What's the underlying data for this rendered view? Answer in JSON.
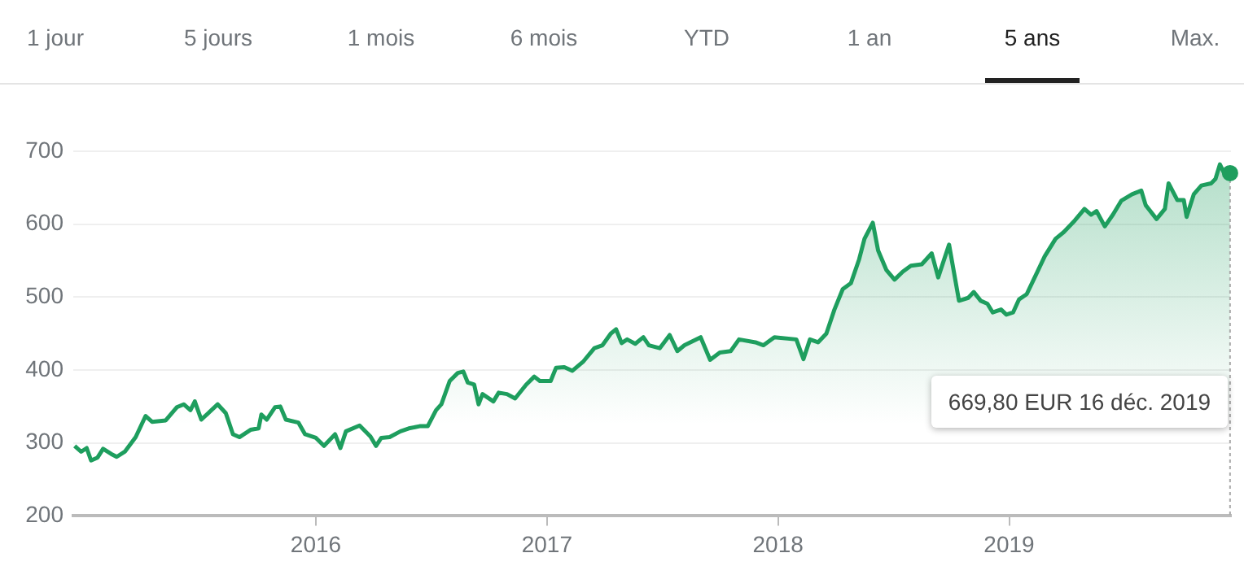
{
  "chart_data": {
    "type": "area",
    "color": "#1e9e5e",
    "x": [
      2014.956,
      2014.984,
      2015.008,
      2015.027,
      2015.055,
      2015.079,
      2015.114,
      2015.138,
      2015.173,
      2015.22,
      2015.263,
      2015.291,
      2015.35,
      2015.398,
      2015.428,
      2015.457,
      2015.476,
      2015.504,
      2015.575,
      2015.61,
      2015.641,
      2015.669,
      2015.717,
      2015.752,
      2015.764,
      2015.787,
      2015.823,
      2015.846,
      2015.87,
      2015.924,
      2015.953,
      2016.0,
      2016.035,
      2016.083,
      2016.106,
      2016.13,
      2016.189,
      2016.236,
      2016.26,
      2016.283,
      2016.319,
      2016.366,
      2016.402,
      2016.449,
      2016.484,
      2016.52,
      2016.543,
      2016.579,
      2016.614,
      2016.638,
      2016.657,
      2016.685,
      2016.704,
      2016.721,
      2016.768,
      2016.791,
      2016.827,
      2016.862,
      2016.91,
      2016.945,
      2016.969,
      2017.016,
      2017.039,
      2017.075,
      2017.11,
      2017.158,
      2017.205,
      2017.24,
      2017.276,
      2017.299,
      2017.323,
      2017.347,
      2017.382,
      2017.417,
      2017.441,
      2017.488,
      2017.531,
      2017.564,
      2017.595,
      2017.665,
      2017.706,
      2017.748,
      2017.795,
      2017.831,
      2017.902,
      2017.937,
      2017.984,
      2018.079,
      2018.11,
      2018.138,
      2018.173,
      2018.209,
      2018.244,
      2018.28,
      2018.315,
      2018.351,
      2018.374,
      2018.41,
      2018.433,
      2018.469,
      2018.504,
      2018.54,
      2018.575,
      2018.622,
      2018.665,
      2018.693,
      2018.74,
      2018.783,
      2018.823,
      2018.847,
      2018.877,
      2018.906,
      2018.929,
      2018.965,
      2018.988,
      2019.017,
      2019.043,
      2019.076,
      2019.106,
      2019.154,
      2019.201,
      2019.236,
      2019.284,
      2019.326,
      2019.355,
      2019.378,
      2019.414,
      2019.449,
      2019.485,
      2019.532,
      2019.572,
      2019.591,
      2019.638,
      2019.674,
      2019.69,
      2019.728,
      2019.756,
      2019.768,
      2019.799,
      2019.832,
      2019.874,
      2019.893,
      2019.912,
      2019.932,
      2019.956
    ],
    "values": [
      296,
      288,
      293,
      276,
      280,
      292,
      285,
      281,
      288,
      308,
      337,
      329,
      331,
      349,
      353,
      345,
      357,
      332,
      353,
      341,
      312,
      308,
      318,
      320,
      339,
      332,
      349,
      350,
      332,
      328,
      312,
      307,
      296,
      312,
      293,
      316,
      324,
      309,
      296,
      307,
      308,
      316,
      320,
      323,
      323,
      345,
      353,
      385,
      396,
      398,
      383,
      380,
      353,
      367,
      357,
      369,
      367,
      361,
      380,
      391,
      385,
      385,
      403,
      404,
      399,
      412,
      430,
      434,
      450,
      456,
      437,
      442,
      436,
      445,
      434,
      430,
      448,
      426,
      434,
      445,
      414,
      424,
      426,
      442,
      438,
      434,
      445,
      442,
      415,
      442,
      438,
      450,
      483,
      511,
      519,
      552,
      580,
      602,
      564,
      537,
      524,
      535,
      543,
      545,
      560,
      527,
      572,
      495,
      499,
      507,
      495,
      491,
      479,
      483,
      476,
      479,
      497,
      504,
      524,
      556,
      580,
      589,
      605,
      621,
      613,
      618,
      597,
      613,
      632,
      641,
      646,
      626,
      607,
      621,
      656,
      633,
      633,
      610,
      641,
      653,
      656,
      662,
      682,
      669,
      670
    ],
    "xlim": [
      2014.95,
      2019.96
    ],
    "xticks": [
      2016,
      2017,
      2018,
      2019
    ],
    "ylim": [
      200,
      700
    ],
    "yticks": [
      200,
      300,
      400,
      500,
      600,
      700
    ],
    "grid": "y",
    "legend": false,
    "marker": "none",
    "line_style": "solid",
    "annotations": [
      "1 jour",
      "5 jours",
      "1 mois",
      "6 mois",
      "YTD",
      "1 an",
      "5 ans",
      "Max.",
      "669,80 EUR  16 déc. 2019"
    ]
  }
}
